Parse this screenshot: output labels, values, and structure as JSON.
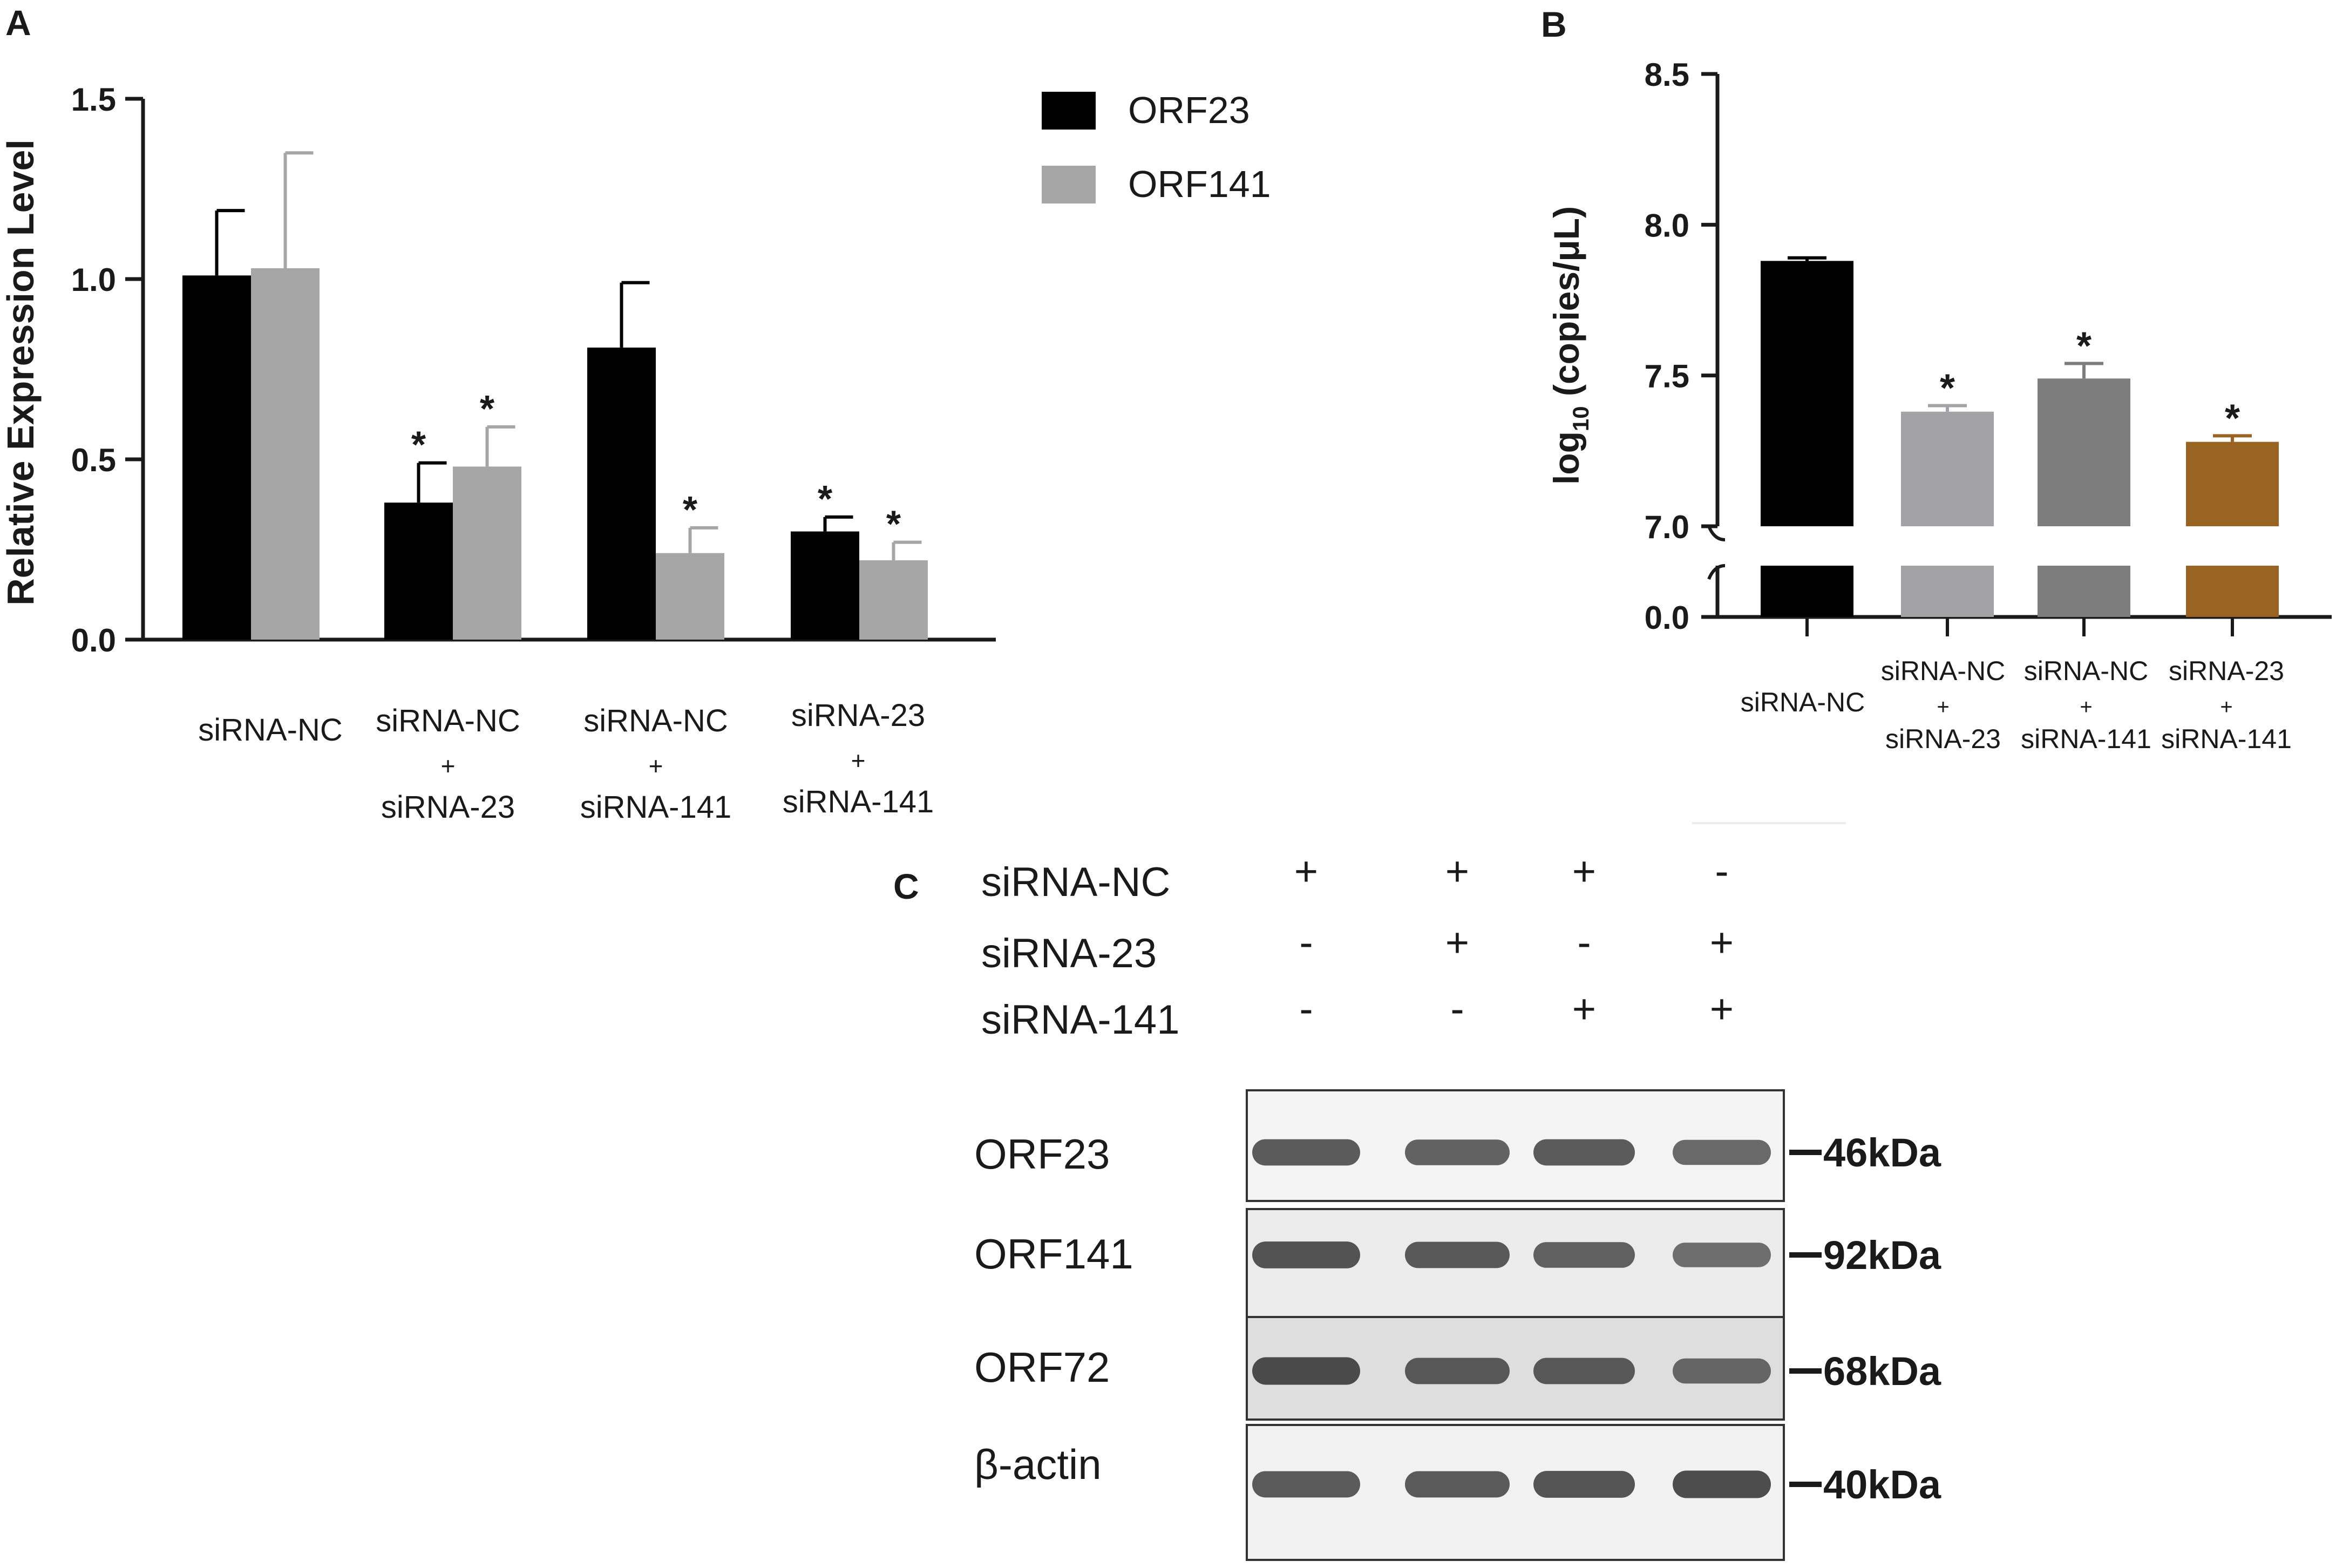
{
  "panel_labels": {
    "a": "A",
    "b": "B",
    "c": "C"
  },
  "chart_data": [
    {
      "panel": "A",
      "type": "bar",
      "title": "",
      "xlabel": "",
      "ylabel": "Relative Expression Level",
      "ylim": [
        0,
        1.5
      ],
      "yticks": [
        "0.0",
        "0.5",
        "1.0",
        "1.5"
      ],
      "categories": [
        [
          "siRNA-NC"
        ],
        [
          "siRNA-NC",
          "+",
          "siRNA-23"
        ],
        [
          "siRNA-NC",
          "+",
          "siRNA-141"
        ],
        [
          "siRNA-23",
          "+",
          "siRNA-141"
        ]
      ],
      "legend_position": "top-right",
      "series": [
        {
          "name": "ORF23",
          "color": "#000000",
          "values": [
            1.01,
            0.38,
            0.81,
            0.3
          ],
          "errors": [
            0.18,
            0.11,
            0.18,
            0.04
          ],
          "significant": [
            false,
            true,
            false,
            true
          ]
        },
        {
          "name": "ORF141",
          "color": "#a6a6a6",
          "values": [
            1.03,
            0.48,
            0.24,
            0.22
          ],
          "errors": [
            0.32,
            0.11,
            0.07,
            0.05
          ],
          "significant": [
            false,
            true,
            true,
            true
          ]
        }
      ],
      "significance_symbol": "*",
      "grid": false
    },
    {
      "panel": "B",
      "type": "bar",
      "title": "",
      "xlabel": "",
      "ylabel": "log10 (copies/μL)",
      "ylabel_main": "log",
      "ylabel_sub": "10",
      "ylabel_rest": " (copies/μL)",
      "axis_break": true,
      "ylim": [
        7.0,
        8.5
      ],
      "yticks": [
        "0.0",
        "7.0",
        "7.5",
        "8.0",
        "8.5"
      ],
      "categories": [
        [
          "siRNA-NC"
        ],
        [
          "siRNA-NC",
          "+",
          "siRNA-23"
        ],
        [
          "siRNA-NC",
          "+",
          "siRNA-141"
        ],
        [
          "siRNA-23",
          "+",
          "siRNA-141"
        ]
      ],
      "values": [
        7.88,
        7.38,
        7.49,
        7.28
      ],
      "errors": [
        0.01,
        0.02,
        0.05,
        0.02
      ],
      "colors": [
        "#000000",
        "#a3a3a5",
        "#7d7d7d",
        "#996321"
      ],
      "significant": [
        false,
        true,
        true,
        true
      ],
      "significance_symbol": "*",
      "grid": false
    }
  ],
  "western_blot": {
    "conditions": [
      {
        "label": "siRNA-NC",
        "signs": [
          "+",
          "+",
          "+",
          "-"
        ]
      },
      {
        "label": "siRNA-23",
        "signs": [
          "-",
          "+",
          "-",
          "+"
        ]
      },
      {
        "label": "siRNA-141",
        "signs": [
          "-",
          "-",
          "+",
          "+"
        ]
      }
    ],
    "blots": [
      {
        "protein": "ORF23",
        "size": "46kDa",
        "background": "#f4f4f4",
        "band_intensity": [
          0.85,
          0.8,
          0.85,
          0.75
        ]
      },
      {
        "protein": "ORF141",
        "size": "92kDa",
        "background": "#ececec",
        "band_intensity": [
          0.9,
          0.85,
          0.8,
          0.7
        ]
      },
      {
        "protein": "ORF72",
        "size": "68kDa",
        "background": "#dedede",
        "band_intensity": [
          0.95,
          0.85,
          0.85,
          0.75
        ]
      },
      {
        "protein": "β-actin",
        "size": "40kDa",
        "background": "#f2f2f2",
        "band_intensity": [
          0.85,
          0.85,
          0.9,
          0.95
        ]
      }
    ]
  }
}
